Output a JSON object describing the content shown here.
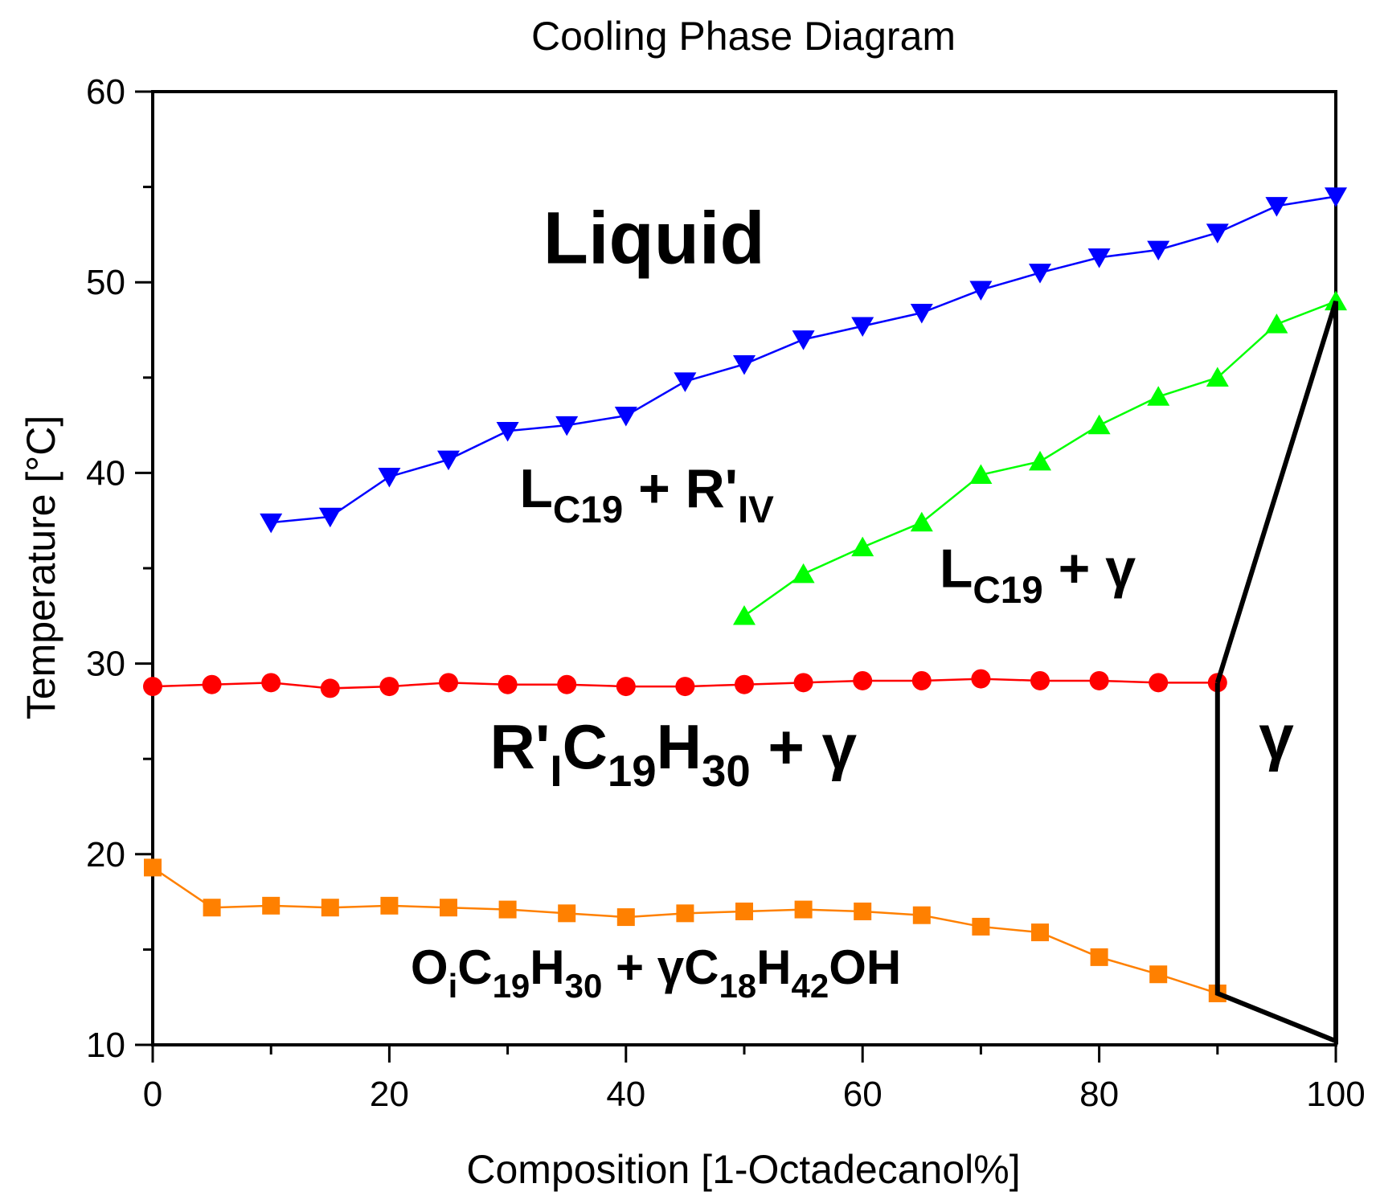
{
  "chart_data": {
    "type": "line",
    "title": "Cooling Phase Diagram",
    "xlabel": "Composition [1-Octadecanol%]",
    "ylabel": "Temperature [°C]",
    "xlim": [
      0,
      100
    ],
    "ylim": [
      10,
      60
    ],
    "xticks": [
      0,
      20,
      40,
      60,
      80,
      100
    ],
    "yticks": [
      10,
      20,
      30,
      40,
      50,
      60
    ],
    "grid": false,
    "legend": "none",
    "series": [
      {
        "marker": "triangle-down",
        "color": "#0000ff",
        "x": [
          10,
          15,
          20,
          25,
          30,
          35,
          40,
          45,
          50,
          55,
          60,
          65,
          70,
          75,
          80,
          85,
          90,
          95,
          100
        ],
        "y": [
          37.4,
          37.7,
          39.8,
          40.7,
          42.2,
          42.5,
          43.0,
          44.8,
          45.7,
          47.0,
          47.7,
          48.4,
          49.6,
          50.5,
          51.3,
          51.7,
          52.6,
          54.0,
          54.5
        ]
      },
      {
        "marker": "triangle-up",
        "color": "#00ff00",
        "x": [
          50,
          55,
          60,
          65,
          70,
          75,
          80,
          85,
          90,
          95,
          100
        ],
        "y": [
          32.5,
          34.7,
          36.1,
          37.4,
          39.9,
          40.6,
          42.5,
          44.0,
          45.0,
          47.8,
          49.0
        ]
      },
      {
        "marker": "circle",
        "color": "#ff0000",
        "x": [
          0,
          5,
          10,
          15,
          20,
          25,
          30,
          35,
          40,
          45,
          50,
          55,
          60,
          65,
          70,
          75,
          80,
          85,
          90
        ],
        "y": [
          28.8,
          28.9,
          29.0,
          28.7,
          28.8,
          29.0,
          28.9,
          28.9,
          28.8,
          28.8,
          28.9,
          29.0,
          29.1,
          29.1,
          29.2,
          29.1,
          29.1,
          29.0,
          29.0
        ]
      },
      {
        "marker": "square",
        "color": "#ff8000",
        "x": [
          0,
          5,
          10,
          15,
          20,
          25,
          30,
          35,
          40,
          45,
          50,
          55,
          60,
          65,
          70,
          75,
          80,
          85,
          90
        ],
        "y": [
          19.3,
          17.2,
          17.3,
          17.2,
          17.3,
          17.2,
          17.1,
          16.9,
          16.7,
          16.9,
          17.0,
          17.1,
          17.0,
          16.8,
          16.2,
          15.9,
          14.6,
          13.7,
          12.7
        ]
      },
      {
        "marker": "none",
        "color": "#000000",
        "x": [
          90,
          90,
          100,
          100,
          90
        ],
        "y": [
          29.0,
          12.7,
          10.2,
          49.0,
          29.0
        ]
      }
    ],
    "regions": [
      {
        "text": "Liquid",
        "x": 33,
        "y": 51,
        "size": 92
      },
      {
        "text": "L",
        "sub": "C19",
        "rest": " + R'",
        "sub2": "IV",
        "x": 31,
        "y": 38.2,
        "size": 68
      },
      {
        "text": "L",
        "sub": "C19",
        "rest": " + γ",
        "x": 66.5,
        "y": 34,
        "size": 68
      },
      {
        "text": "R'",
        "sub": "I",
        "rest": "C",
        "sub2": "19",
        "rest2": "H",
        "sub3": "30",
        "rest3": " + γ",
        "x": 28.5,
        "y": 24.5,
        "size": 78
      },
      {
        "text": "γ",
        "x": 93.5,
        "y": 25,
        "size": 78
      },
      {
        "text": "O",
        "sub": "i",
        "rest": "C",
        "sub2": "19",
        "rest2": "H",
        "sub3": "30",
        "rest3": " + γC",
        "sub4": "18",
        "rest4": "H",
        "sub5": "42",
        "rest5": "OH",
        "x": 21.8,
        "y": 13.2,
        "size": 60
      }
    ]
  }
}
